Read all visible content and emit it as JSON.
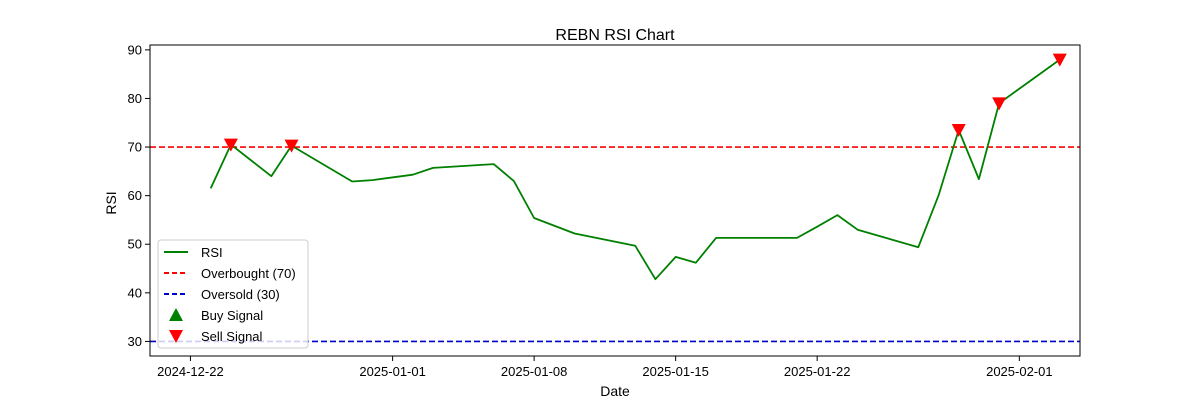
{
  "chart_data": {
    "type": "line",
    "title": "REBN RSI Chart",
    "xlabel": "Date",
    "ylabel": "RSI",
    "x_axis_type": "date",
    "xlim": [
      "2024-12-20",
      "2025-02-04"
    ],
    "ylim": [
      27,
      91
    ],
    "x_ticks": [
      "2024-12-22",
      "2025-01-01",
      "2025-01-08",
      "2025-01-15",
      "2025-01-22",
      "2025-02-01"
    ],
    "y_ticks": [
      30,
      40,
      50,
      60,
      70,
      80,
      90
    ],
    "grid": false,
    "legend_position": "lower-left",
    "series": [
      {
        "name": "RSI",
        "color": "#008000",
        "points": [
          {
            "x": "2024-12-23",
            "y": 61.5
          },
          {
            "x": "2024-12-24",
            "y": 70.5
          },
          {
            "x": "2024-12-26",
            "y": 64.0
          },
          {
            "x": "2024-12-27",
            "y": 70.3
          },
          {
            "x": "2024-12-30",
            "y": 62.9
          },
          {
            "x": "2024-12-31",
            "y": 63.2
          },
          {
            "x": "2025-01-02",
            "y": 64.3
          },
          {
            "x": "2025-01-03",
            "y": 65.7
          },
          {
            "x": "2025-01-06",
            "y": 66.5
          },
          {
            "x": "2025-01-07",
            "y": 63.0
          },
          {
            "x": "2025-01-08",
            "y": 55.4
          },
          {
            "x": "2025-01-10",
            "y": 52.2
          },
          {
            "x": "2025-01-13",
            "y": 49.7
          },
          {
            "x": "2025-01-14",
            "y": 42.8
          },
          {
            "x": "2025-01-15",
            "y": 47.4
          },
          {
            "x": "2025-01-16",
            "y": 46.2
          },
          {
            "x": "2025-01-17",
            "y": 51.3
          },
          {
            "x": "2025-01-21",
            "y": 51.3
          },
          {
            "x": "2025-01-22",
            "y": 53.6
          },
          {
            "x": "2025-01-23",
            "y": 56.0
          },
          {
            "x": "2025-01-24",
            "y": 53.0
          },
          {
            "x": "2025-01-27",
            "y": 49.4
          },
          {
            "x": "2025-01-28",
            "y": 60.0
          },
          {
            "x": "2025-01-29",
            "y": 73.5
          },
          {
            "x": "2025-01-30",
            "y": 63.4
          },
          {
            "x": "2025-01-31",
            "y": 79.0
          },
          {
            "x": "2025-02-03",
            "y": 88.0
          }
        ]
      },
      {
        "name": "Overbought (70)",
        "type": "hline",
        "y": 70,
        "color": "#ff0000",
        "dashed": true
      },
      {
        "name": "Oversold (30)",
        "type": "hline",
        "y": 30,
        "color": "#0000cc",
        "dashed": true
      },
      {
        "name": "Buy Signal",
        "type": "scatter",
        "marker": "triangle-up",
        "color": "#008000",
        "points": []
      },
      {
        "name": "Sell Signal",
        "type": "scatter",
        "marker": "triangle-down",
        "color": "#ff0000",
        "points": [
          {
            "x": "2024-12-24",
            "y": 70.5
          },
          {
            "x": "2024-12-27",
            "y": 70.3
          },
          {
            "x": "2025-01-29",
            "y": 73.5
          },
          {
            "x": "2025-01-31",
            "y": 79.0
          },
          {
            "x": "2025-02-03",
            "y": 88.0
          }
        ]
      }
    ]
  }
}
